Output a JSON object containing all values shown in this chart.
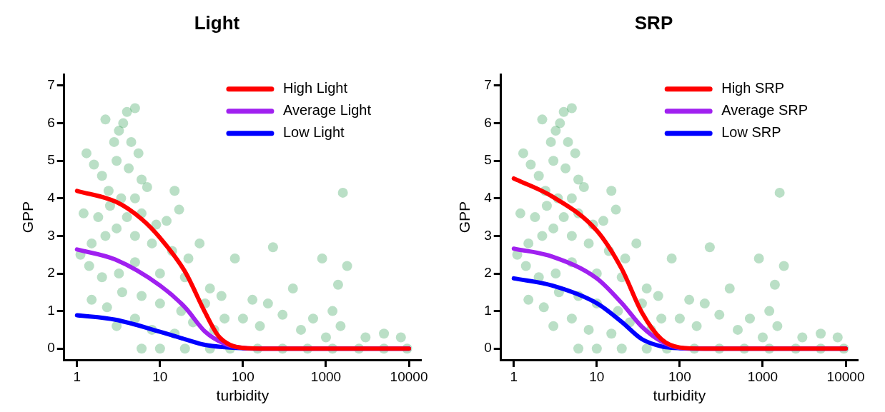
{
  "chart_data": [
    {
      "type": "scatter",
      "title": "Light",
      "xlabel": "turbidity",
      "ylabel": "GPP",
      "log": "x",
      "xlim": [
        0.7,
        14000
      ],
      "xticks": [
        1,
        10,
        100,
        1000,
        10000
      ],
      "ylim": [
        -0.3,
        7.3
      ],
      "yticks": [
        0,
        1,
        2,
        3,
        4,
        5,
        6,
        7
      ],
      "legend": "top right",
      "line_style": "solid",
      "series": [
        {
          "marker": "circle",
          "color": "#1a9641",
          "x": [
            1.3,
            2.2,
            3.2,
            4,
            5,
            3.6,
            2.8,
            4.5,
            5.5,
            1.6,
            2,
            3,
            4.2,
            6,
            7,
            15,
            2.4,
            3.4,
            5,
            1.2,
            1.8,
            2.5,
            4,
            6,
            9,
            12,
            17,
            1.1,
            1.5,
            2.2,
            3,
            5,
            8,
            14,
            22,
            1.4,
            2,
            3.2,
            5,
            10,
            20,
            30,
            40,
            1.5,
            2.3,
            3.5,
            6,
            10,
            18,
            35,
            55,
            80,
            60,
            3,
            5,
            8,
            15,
            25,
            45,
            100,
            130,
            160,
            200,
            230,
            300,
            400,
            500,
            700,
            900,
            1200,
            1400,
            1600,
            1800,
            1500,
            1000,
            3000,
            5000,
            8000,
            6,
            10,
            20,
            40,
            70,
            150,
            300,
            600,
            1200,
            2500,
            5000,
            9500
          ],
          "values": [
            5.2,
            6.1,
            5.8,
            6.3,
            6.4,
            6,
            5.5,
            5.5,
            5.2,
            4.9,
            4.6,
            5,
            4.8,
            4.5,
            4.3,
            4.2,
            4.2,
            4,
            4,
            3.6,
            3.5,
            3.8,
            3.5,
            3.6,
            3.3,
            3.4,
            3.7,
            2.5,
            2.8,
            3,
            3.2,
            3,
            2.8,
            2.6,
            2.4,
            2.2,
            1.9,
            2,
            2.3,
            2,
            1.9,
            2.8,
            1.6,
            1.3,
            1.1,
            1.5,
            1.4,
            1.2,
            1,
            1.2,
            1.4,
            2.4,
            0.8,
            0.6,
            0.8,
            0.5,
            0.4,
            0.7,
            0.5,
            0.8,
            1.3,
            0.6,
            1.2,
            2.7,
            0.9,
            1.6,
            0.5,
            0.8,
            2.4,
            1,
            1.7,
            4.15,
            2.2,
            0.6,
            0.3,
            0.3,
            0.4,
            0.3,
            0,
            0,
            0,
            0,
            0,
            0,
            0,
            0,
            0,
            0,
            0,
            0
          ]
        },
        {
          "type": "line",
          "name": "High Light",
          "color": "#ff0000",
          "x": [
            1,
            3,
            6,
            10,
            20,
            35,
            50,
            70,
            100,
            200,
            10000
          ],
          "values": [
            4.2,
            3.9,
            3.45,
            2.95,
            2.05,
            0.96,
            0.35,
            0.1,
            0.02,
            0,
            0
          ]
        },
        {
          "type": "line",
          "name": "Average Light",
          "color": "#a020f0",
          "x": [
            1,
            2.9,
            10,
            20,
            35,
            60,
            100,
            200,
            10000
          ],
          "values": [
            2.64,
            2.37,
            1.68,
            1.1,
            0.45,
            0.13,
            0.02,
            0,
            0
          ]
        },
        {
          "type": "line",
          "name": "Low Light",
          "color": "#0000ff",
          "x": [
            1,
            2.9,
            10,
            20,
            35,
            100,
            200,
            10000
          ],
          "values": [
            0.89,
            0.77,
            0.45,
            0.25,
            0.1,
            0.01,
            0,
            0
          ]
        }
      ]
    },
    {
      "type": "scatter",
      "title": "SRP",
      "xlabel": "turbidity",
      "ylabel": "GPP",
      "log": "x",
      "xlim": [
        0.7,
        14000
      ],
      "xticks": [
        1,
        10,
        100,
        1000,
        10000
      ],
      "ylim": [
        -0.3,
        7.3
      ],
      "yticks": [
        0,
        1,
        2,
        3,
        4,
        5,
        6,
        7
      ],
      "legend": "top right",
      "line_style": "solid",
      "series": [
        {
          "marker": "circle",
          "color": "#1a9641",
          "x": [
            1.3,
            2.2,
            3.2,
            4,
            5,
            3.6,
            2.8,
            4.5,
            5.5,
            1.6,
            2,
            3,
            4.2,
            6,
            7,
            15,
            2.4,
            3.4,
            5,
            1.2,
            1.8,
            2.5,
            4,
            6,
            9,
            12,
            17,
            1.1,
            1.5,
            2.2,
            3,
            5,
            8,
            14,
            22,
            1.4,
            2,
            3.2,
            5,
            10,
            20,
            30,
            40,
            1.5,
            2.3,
            3.5,
            6,
            10,
            18,
            35,
            55,
            80,
            60,
            3,
            5,
            8,
            15,
            25,
            45,
            100,
            130,
            160,
            200,
            230,
            300,
            400,
            500,
            700,
            900,
            1200,
            1400,
            1600,
            1800,
            1500,
            1000,
            3000,
            5000,
            8000,
            6,
            10,
            20,
            40,
            70,
            150,
            300,
            600,
            1200,
            2500,
            5000,
            9500
          ],
          "values": [
            5.2,
            6.1,
            5.8,
            6.3,
            6.4,
            6,
            5.5,
            5.5,
            5.2,
            4.9,
            4.6,
            5,
            4.8,
            4.5,
            4.3,
            4.2,
            4.2,
            4,
            4,
            3.6,
            3.5,
            3.8,
            3.5,
            3.6,
            3.3,
            3.4,
            3.7,
            2.5,
            2.8,
            3,
            3.2,
            3,
            2.8,
            2.6,
            2.4,
            2.2,
            1.9,
            2,
            2.3,
            2,
            1.9,
            2.8,
            1.6,
            1.3,
            1.1,
            1.5,
            1.4,
            1.2,
            1,
            1.2,
            1.4,
            2.4,
            0.8,
            0.6,
            0.8,
            0.5,
            0.4,
            0.7,
            0.5,
            0.8,
            1.3,
            0.6,
            1.2,
            2.7,
            0.9,
            1.6,
            0.5,
            0.8,
            2.4,
            1,
            1.7,
            4.15,
            2.2,
            0.6,
            0.3,
            0.3,
            0.4,
            0.3,
            0,
            0,
            0,
            0,
            0,
            0,
            0,
            0,
            0,
            0,
            0,
            0
          ]
        },
        {
          "type": "line",
          "name": "High SRP",
          "color": "#ff0000",
          "x": [
            1,
            2.9,
            10,
            20,
            35,
            60,
            100,
            200,
            10000
          ],
          "values": [
            4.53,
            4.05,
            3.14,
            2.12,
            0.96,
            0.25,
            0.03,
            0,
            0
          ]
        },
        {
          "type": "line",
          "name": "Average SRP",
          "color": "#a020f0",
          "x": [
            1,
            2.9,
            10,
            20,
            35,
            60,
            100,
            200,
            10000
          ],
          "values": [
            2.66,
            2.45,
            1.87,
            1.21,
            0.58,
            0.19,
            0.02,
            0,
            0
          ]
        },
        {
          "type": "line",
          "name": "Low SRP",
          "color": "#0000ff",
          "x": [
            1,
            2.9,
            10,
            20,
            35,
            60,
            100,
            200,
            10000
          ],
          "values": [
            1.87,
            1.68,
            1.21,
            0.71,
            0.25,
            0.06,
            0.01,
            0,
            0
          ]
        }
      ]
    }
  ]
}
